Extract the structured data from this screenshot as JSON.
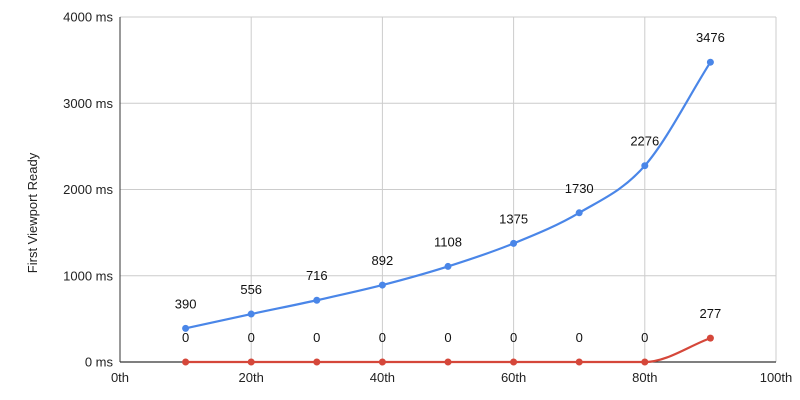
{
  "chart_data": {
    "type": "line",
    "ylabel": "First Viewport Ready",
    "xlabel": "",
    "x_ticks": [
      "0th",
      "20th",
      "40th",
      "60th",
      "80th",
      "100th"
    ],
    "y_ticks": [
      "0 ms",
      "1000 ms",
      "2000 ms",
      "3000 ms",
      "4000 ms"
    ],
    "xlim": [
      0,
      100
    ],
    "ylim": [
      0,
      4000
    ],
    "grid": true,
    "x": [
      10,
      20,
      30,
      40,
      50,
      60,
      70,
      80,
      90
    ],
    "series": [
      {
        "color": "#4a86e8",
        "values": [
          390,
          556,
          716,
          892,
          1108,
          1375,
          1730,
          2276,
          3476
        ]
      },
      {
        "color": "#d5473a",
        "values": [
          0,
          0,
          0,
          0,
          0,
          0,
          0,
          0,
          277
        ]
      }
    ]
  }
}
